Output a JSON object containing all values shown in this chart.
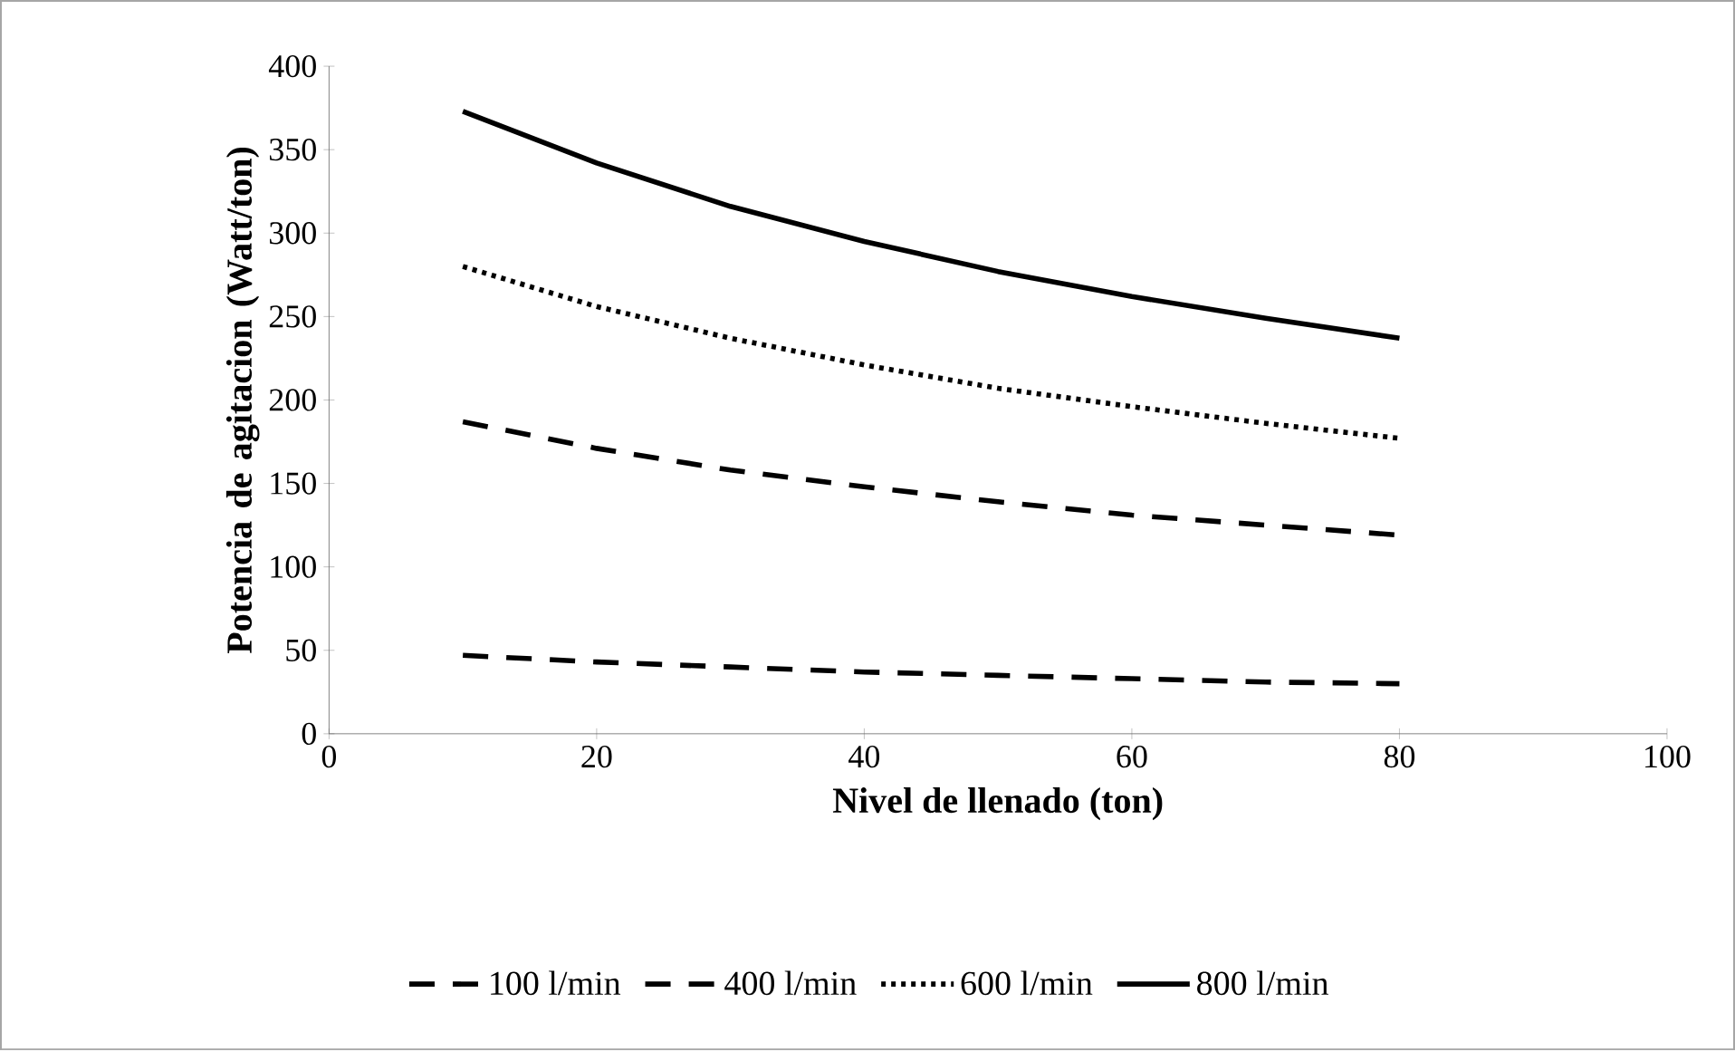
{
  "chart_data": {
    "type": "line",
    "xlabel": "Nivel de llenado (ton)",
    "ylabel": "Potencia de agitacion (Watt/ton)",
    "x": [
      10,
      20,
      30,
      40,
      50,
      60,
      70,
      80
    ],
    "series": [
      {
        "name": "100 l/min",
        "color": "#000000",
        "line_style": "dashed",
        "values": [
          47,
          43,
          40,
          37,
          35,
          33,
          31,
          30
        ]
      },
      {
        "name": "400 l/min",
        "color": "#000000",
        "line_style": "dashed",
        "values": [
          187,
          171,
          158,
          148,
          139,
          131,
          125,
          119
        ]
      },
      {
        "name": "600 l/min",
        "color": "#000000",
        "line_style": "dotted",
        "values": [
          280,
          256,
          237,
          221,
          207,
          196,
          186,
          177
        ]
      },
      {
        "name": "800 l/min",
        "color": "#000000",
        "line_style": "solid",
        "values": [
          373,
          342,
          316,
          295,
          277,
          262,
          249,
          237
        ]
      }
    ],
    "xlim": [
      0,
      100
    ],
    "xticks": [
      0,
      20,
      40,
      60,
      80,
      100
    ],
    "ylim": [
      0,
      400
    ],
    "yticks": [
      0,
      50,
      100,
      150,
      200,
      250,
      300,
      350,
      400
    ],
    "grid": false,
    "legend": "bottom"
  }
}
